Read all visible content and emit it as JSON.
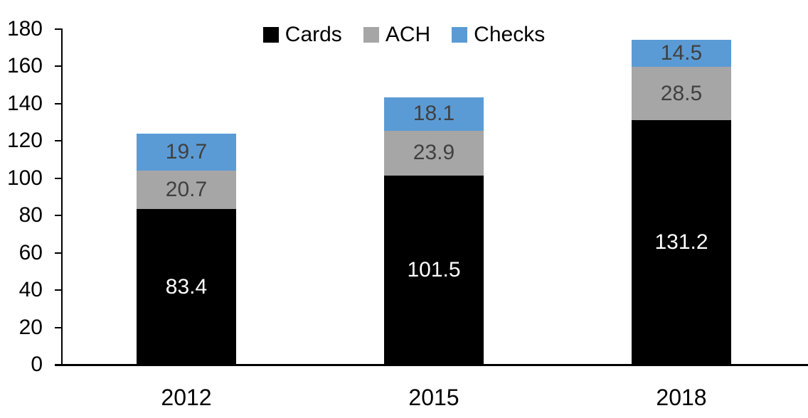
{
  "chart_data": {
    "type": "bar",
    "stacked": true,
    "title": "",
    "xlabel": "",
    "ylabel": "",
    "categories": [
      "2012",
      "2015",
      "2018"
    ],
    "series": [
      {
        "name": "Cards",
        "color": "#000000",
        "label_color": "#ffffff",
        "values": [
          83.4,
          101.5,
          131.2
        ]
      },
      {
        "name": "ACH",
        "color": "#a6a6a6",
        "label_color": "#404040",
        "values": [
          20.7,
          23.9,
          28.5
        ]
      },
      {
        "name": "Checks",
        "color": "#5b9bd5",
        "label_color": "#404040",
        "values": [
          19.7,
          18.1,
          14.5
        ]
      }
    ],
    "ylim": [
      0,
      180
    ],
    "y_ticks": [
      0,
      20,
      40,
      60,
      80,
      100,
      120,
      140,
      160,
      180
    ],
    "grid": false,
    "legend_position": "top-center",
    "axis_color": "#000000"
  }
}
